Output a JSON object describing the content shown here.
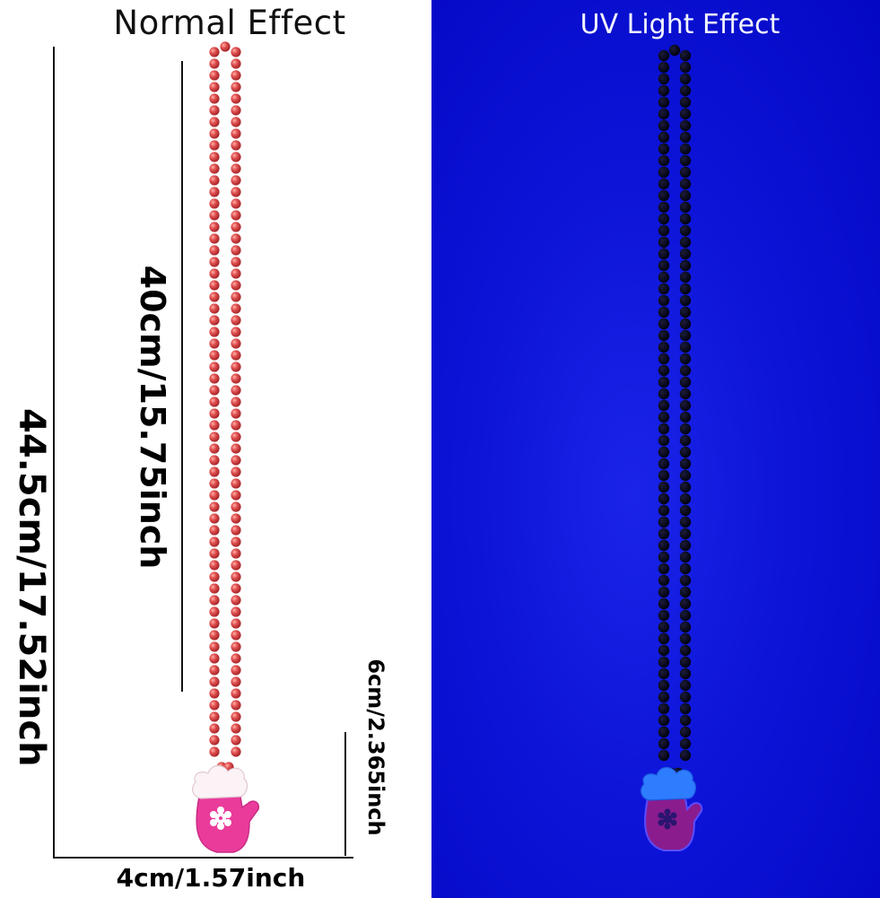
{
  "panels": {
    "normal": {
      "title": "Normal Effect"
    },
    "uv": {
      "title": "UV Light Effect"
    }
  },
  "dimensions": {
    "total_length": "44.5cm/17.52inch",
    "chain_length": "40cm/15.75inch",
    "pendant_height": "6cm/2.365inch",
    "pendant_width": "4cm/1.57inch"
  },
  "colors": {
    "normal_bead": "#d94a4a",
    "uv_bead": "#05051a",
    "uv_background": "#0a10d4",
    "mitten_normal": "#e83a9a",
    "mitten_uv": "#8a1c8c",
    "cuff_uv": "#2a7cff"
  }
}
